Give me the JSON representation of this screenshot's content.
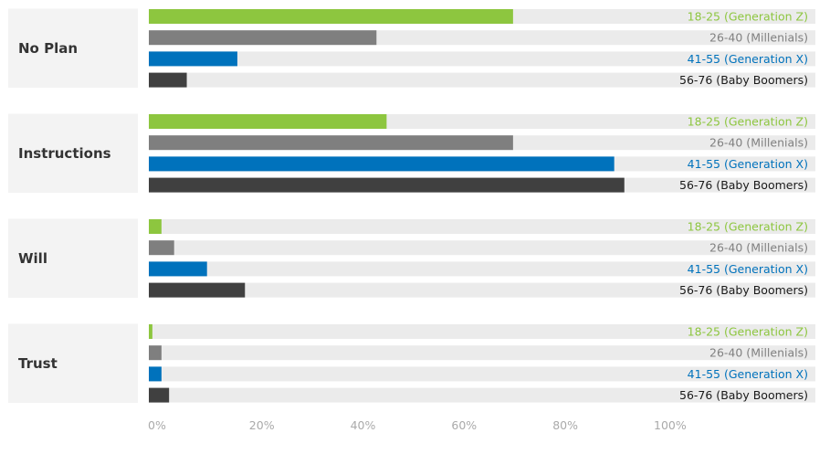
{
  "chart_data": {
    "type": "bar",
    "orientation": "horizontal",
    "title": "",
    "xlabel": "",
    "ylabel": "",
    "xlim": [
      0,
      100
    ],
    "categories": [
      "No Plan",
      "Instructions",
      "Will",
      "Trust"
    ],
    "series": [
      {
        "name": "18-25 (Generation Z)",
        "color": "#8dc63f",
        "values": [
          72,
          47,
          2.5,
          0.7
        ]
      },
      {
        "name": "26-40 (Millenials)",
        "color": "#7f7f7f",
        "values": [
          45,
          72,
          5,
          2.5
        ]
      },
      {
        "name": "41-55 (Generation X)",
        "color": "#0072bc",
        "values": [
          17.5,
          92,
          11.5,
          2.5
        ]
      },
      {
        "name": "56-76 (Baby Boomers)",
        "color": "#404040",
        "values": [
          7.5,
          94,
          19,
          4
        ]
      }
    ],
    "series_label_colors": [
      "#8dc63f",
      "#808080",
      "#0072bc",
      "#1a1a1a"
    ],
    "ticks": [
      0,
      20,
      40,
      60,
      80,
      100
    ],
    "tick_labels": [
      "0%",
      "20%",
      "40%",
      "60%",
      "80%",
      "100%"
    ]
  }
}
